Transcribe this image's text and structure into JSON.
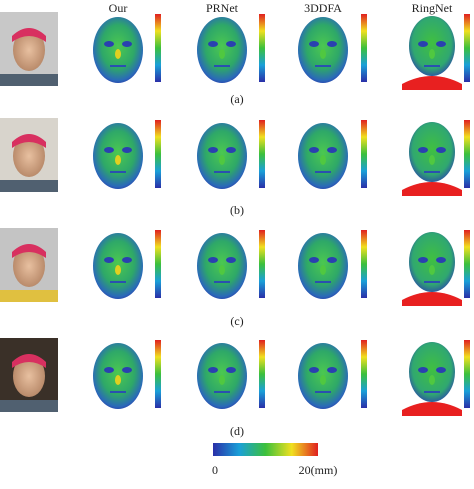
{
  "columns": [
    "Our",
    "PRNet",
    "3DDFA",
    "RingNet"
  ],
  "rows": [
    {
      "label": "(a)"
    },
    {
      "label": "(b)"
    },
    {
      "label": "(c)"
    },
    {
      "label": "(d)"
    }
  ],
  "colorbar": {
    "min_label": "0",
    "max_label": "20(mm)"
  }
}
